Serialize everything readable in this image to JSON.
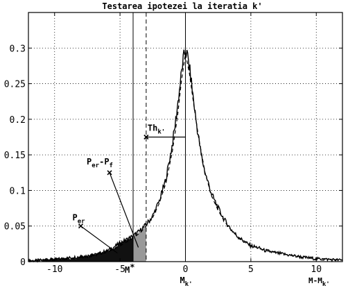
{
  "chart_data": {
    "type": "line",
    "title": "Testarea ipotezei la iteratia k'",
    "xlabel": "M-M",
    "xlabel_sub": "k'",
    "ylabel": "",
    "xlim": [
      -12,
      12
    ],
    "ylim": [
      0,
      0.35
    ],
    "x_ticks": [
      -10,
      -5,
      0,
      5,
      10
    ],
    "y_ticks": [
      0,
      0.05,
      0.1,
      0.15,
      0.2,
      0.25,
      0.3
    ],
    "x_tick_labels": [
      "-10",
      "-5",
      "0",
      "5",
      "10"
    ],
    "y_tick_labels": [
      "0",
      "0.05",
      "0.1",
      "0.15",
      "0.2",
      "0.25",
      "0.3"
    ],
    "grid": true,
    "series": [
      {
        "style": "solid",
        "x": [
          -12,
          -11,
          -10,
          -9,
          -8,
          -7,
          -6.5,
          -6,
          -5.5,
          -5,
          -4.5,
          -4,
          -3.5,
          -3,
          -2.5,
          -2,
          -1.5,
          -1.2,
          -1,
          -0.8,
          -0.6,
          -0.4,
          -0.2,
          0,
          0.2,
          0.4,
          0.6,
          0.8,
          1,
          1.2,
          1.5,
          2,
          2.5,
          3,
          3.5,
          4,
          4.5,
          5,
          5.5,
          6,
          7,
          8,
          9,
          10,
          11,
          12
        ],
        "y": [
          0.001,
          0.002,
          0.003,
          0.005,
          0.007,
          0.009,
          0.012,
          0.015,
          0.02,
          0.026,
          0.031,
          0.036,
          0.043,
          0.052,
          0.064,
          0.085,
          0.115,
          0.145,
          0.165,
          0.19,
          0.22,
          0.25,
          0.28,
          0.298,
          0.285,
          0.26,
          0.23,
          0.2,
          0.175,
          0.15,
          0.125,
          0.095,
          0.075,
          0.058,
          0.045,
          0.035,
          0.028,
          0.022,
          0.02,
          0.016,
          0.012,
          0.009,
          0.006,
          0.004,
          0.003,
          0.002
        ]
      },
      {
        "style": "dashed",
        "x": [
          -12,
          -10,
          -8,
          -6,
          -5,
          -4,
          -3.5,
          -3,
          -2.5,
          -2,
          -1.5,
          -1,
          -0.6,
          -0.3,
          0,
          0.3,
          0.6,
          1,
          1.5,
          2,
          2.5,
          3,
          3.5,
          4,
          5,
          6,
          8,
          10,
          12
        ],
        "y": [
          0.001,
          0.003,
          0.006,
          0.013,
          0.022,
          0.033,
          0.04,
          0.05,
          0.062,
          0.082,
          0.11,
          0.155,
          0.205,
          0.255,
          0.292,
          0.265,
          0.225,
          0.175,
          0.125,
          0.092,
          0.072,
          0.056,
          0.044,
          0.035,
          0.023,
          0.016,
          0.009,
          0.005,
          0.002
        ]
      }
    ],
    "vertical_lines": [
      {
        "x": -4,
        "style": "solid"
      },
      {
        "x": -3,
        "style": "dashed"
      },
      {
        "x": 0,
        "style": "solid"
      }
    ],
    "shaded_regions": [
      {
        "from": -12,
        "to": -4,
        "color": "#111111"
      },
      {
        "from": -4,
        "to": -3,
        "color": "#999999"
      }
    ],
    "annotations": [
      {
        "id": "per",
        "main": "P",
        "sub": "er",
        "marker_x": -8,
        "marker_y": 0.05,
        "target_x": -5.2,
        "target_y": 0.012
      },
      {
        "id": "per-pf",
        "main": "P",
        "sub": "er",
        "main2": "-P",
        "sub2": "f",
        "marker_x": -5.8,
        "marker_y": 0.125,
        "target_x": -3.6,
        "target_y": 0.02
      },
      {
        "id": "th",
        "main": "Th",
        "sub": "k'",
        "marker_x": -3,
        "marker_y": 0.175,
        "target_x": 0,
        "target_y": 0.175
      },
      {
        "id": "mstar",
        "main": "M",
        "sup": "*",
        "x": -4
      },
      {
        "id": "mk",
        "main": "M",
        "sub": "k'",
        "x": 0
      }
    ]
  }
}
